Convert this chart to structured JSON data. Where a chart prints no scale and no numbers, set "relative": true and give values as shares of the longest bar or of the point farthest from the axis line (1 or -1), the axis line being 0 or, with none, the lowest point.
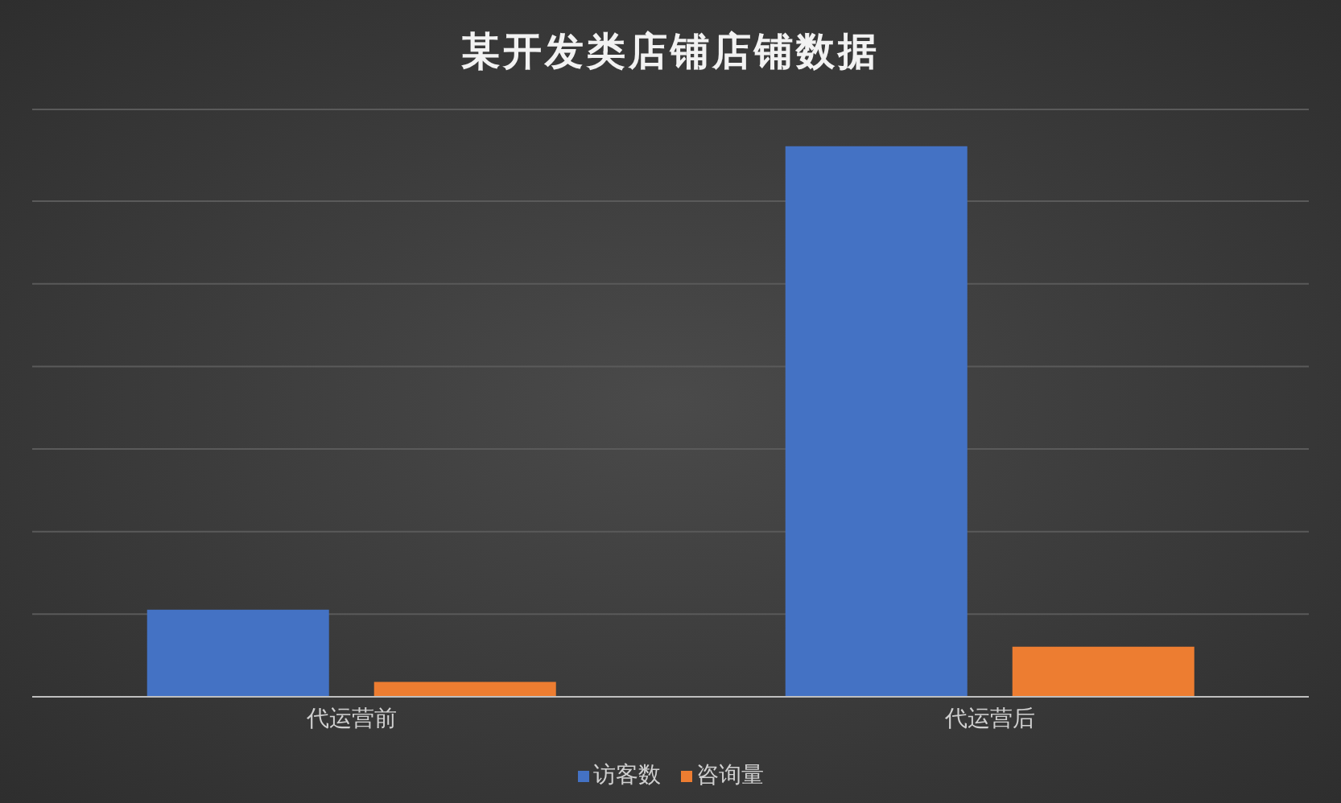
{
  "chart_data": {
    "type": "bar",
    "title": "某开发类店铺店铺数据",
    "categories": [
      "代运营前",
      "代运营后"
    ],
    "relative": true,
    "grid": "y",
    "legend": "bottom",
    "series": [
      {
        "name": "访客数",
        "color": "#4472c4",
        "values": [
          0.158,
          1
        ]
      },
      {
        "name": "咨询量",
        "color": "#ed7d31",
        "values": [
          0.027,
          0.091
        ]
      }
    ]
  }
}
